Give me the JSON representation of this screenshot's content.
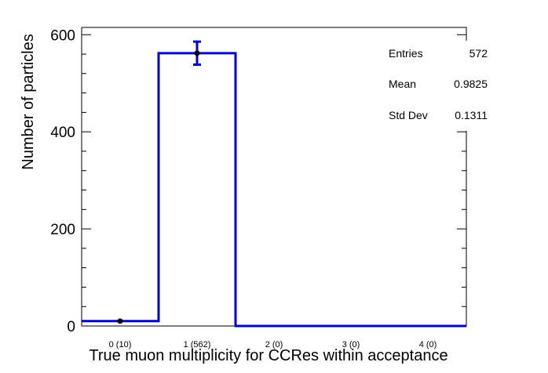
{
  "chart_data": {
    "type": "bar",
    "xlabel": "True muon multiplicity for CCRes within acceptance",
    "ylabel": "Number of particles",
    "categories": [
      "0 (10)",
      "1 (562)",
      "2 (0)",
      "3 (0)",
      "4 (0)"
    ],
    "values": [
      10,
      562,
      0,
      0,
      0
    ],
    "errors": [
      3.2,
      23.7,
      0,
      0,
      0
    ],
    "ylim": [
      0,
      615
    ],
    "yticks": [
      0,
      200,
      400,
      600
    ],
    "style": "step-histogram",
    "color": "#0000cc",
    "grid": false,
    "stats_box": {
      "position": "top-right",
      "rows": [
        {
          "label": "Entries",
          "value": "572"
        },
        {
          "label": "Mean",
          "value": "0.9825"
        },
        {
          "label": "Std Dev",
          "value": "0.1311"
        }
      ]
    }
  }
}
